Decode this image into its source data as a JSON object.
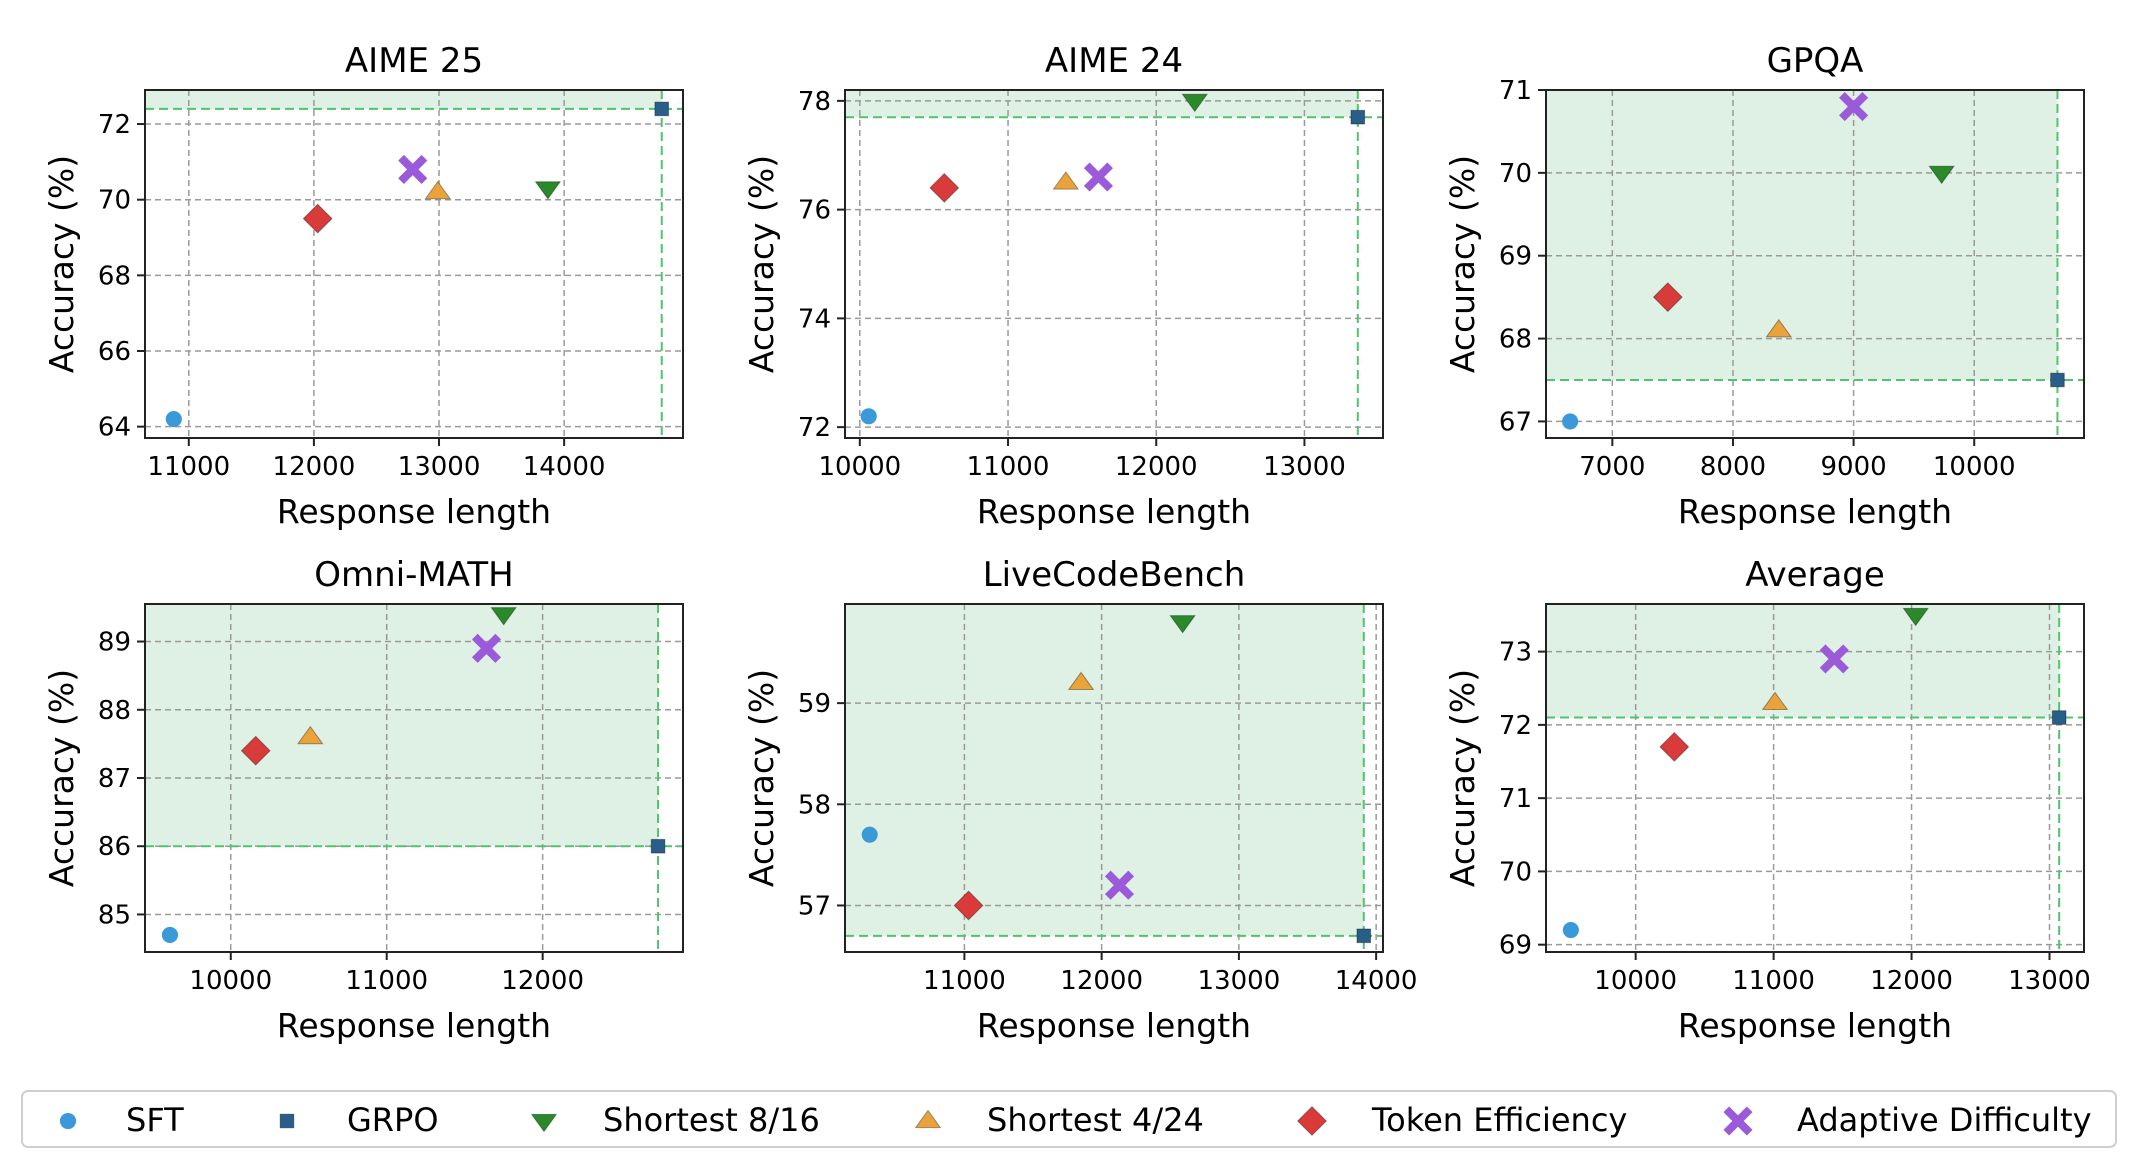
{
  "colors": {
    "SFT": "#3a9ad9",
    "GRPO": "#2a5e8a",
    "Shortest 8/16": "#2a8a2a",
    "Shortest 4/24": "#eaa33a",
    "Token Efficiency": "#d93a3a",
    "Adaptive Difficulty": "#9a5ad9",
    "region_fill": "#dff0e4",
    "region_line": "#4fc46a",
    "grid": "#9a9a9a"
  },
  "legend": [
    {
      "label": "SFT",
      "marker": "circle"
    },
    {
      "label": "GRPO",
      "marker": "square"
    },
    {
      "label": "Shortest 8/16",
      "marker": "triangle-down"
    },
    {
      "label": "Shortest 4/24",
      "marker": "triangle-up"
    },
    {
      "label": "Token Efficiency",
      "marker": "diamond"
    },
    {
      "label": "Adaptive Difficulty",
      "marker": "x"
    }
  ],
  "chart_data": [
    {
      "type": "scatter",
      "title": "AIME 25",
      "xlabel": "Response length",
      "ylabel": "Accuracy (%)",
      "xlim": [
        10650,
        14950
      ],
      "ylim": [
        63.7,
        72.9
      ],
      "xticks": [
        11000,
        12000,
        13000,
        14000
      ],
      "yticks": [
        64,
        66,
        68,
        70,
        72
      ],
      "grid": true,
      "reference": {
        "x": 14780,
        "y": 72.4
      },
      "points": [
        {
          "series": "SFT",
          "x": 10880,
          "y": 64.2
        },
        {
          "series": "GRPO",
          "x": 14780,
          "y": 72.4
        },
        {
          "series": "Shortest 8/16",
          "x": 13870,
          "y": 70.3
        },
        {
          "series": "Shortest 4/24",
          "x": 12990,
          "y": 70.2
        },
        {
          "series": "Token Efficiency",
          "x": 12030,
          "y": 69.5
        },
        {
          "series": "Adaptive Difficulty",
          "x": 12790,
          "y": 70.8
        }
      ]
    },
    {
      "type": "scatter",
      "title": "AIME 24",
      "xlabel": "Response length",
      "ylabel": "Accuracy (%)",
      "xlim": [
        9900,
        13530
      ],
      "ylim": [
        71.8,
        78.2
      ],
      "xticks": [
        10000,
        11000,
        12000,
        13000
      ],
      "yticks": [
        72,
        74,
        76,
        78
      ],
      "grid": true,
      "reference": {
        "x": 13360,
        "y": 77.7
      },
      "points": [
        {
          "series": "SFT",
          "x": 10060,
          "y": 72.2
        },
        {
          "series": "GRPO",
          "x": 13360,
          "y": 77.7
        },
        {
          "series": "Shortest 8/16",
          "x": 12260,
          "y": 78.0
        },
        {
          "series": "Shortest 4/24",
          "x": 11390,
          "y": 76.5
        },
        {
          "series": "Token Efficiency",
          "x": 10570,
          "y": 76.4
        },
        {
          "series": "Adaptive Difficulty",
          "x": 11610,
          "y": 76.6
        }
      ]
    },
    {
      "type": "scatter",
      "title": "GPQA",
      "xlabel": "Response length",
      "ylabel": "Accuracy (%)",
      "xlim": [
        6450,
        10910
      ],
      "ylim": [
        66.8,
        71.0
      ],
      "xticks": [
        7000,
        8000,
        9000,
        10000
      ],
      "yticks": [
        67,
        68,
        69,
        70,
        71
      ],
      "grid": true,
      "reference": {
        "x": 10690,
        "y": 67.5
      },
      "points": [
        {
          "series": "SFT",
          "x": 6650,
          "y": 67.0
        },
        {
          "series": "GRPO",
          "x": 10690,
          "y": 67.5
        },
        {
          "series": "Shortest 8/16",
          "x": 9730,
          "y": 70.0
        },
        {
          "series": "Shortest 4/24",
          "x": 8380,
          "y": 68.1
        },
        {
          "series": "Token Efficiency",
          "x": 7460,
          "y": 68.5
        },
        {
          "series": "Adaptive Difficulty",
          "x": 9000,
          "y": 70.8
        }
      ]
    },
    {
      "type": "scatter",
      "title": "Omni-MATH",
      "xlabel": "Response length",
      "ylabel": "Accuracy (%)",
      "xlim": [
        9450,
        12900
      ],
      "ylim": [
        84.45,
        89.55
      ],
      "xticks": [
        10000,
        11000,
        12000
      ],
      "yticks": [
        85,
        86,
        87,
        88,
        89
      ],
      "grid": true,
      "reference": {
        "x": 12740,
        "y": 86.0
      },
      "points": [
        {
          "series": "SFT",
          "x": 9610,
          "y": 84.7
        },
        {
          "series": "GRPO",
          "x": 12740,
          "y": 86.0
        },
        {
          "series": "Shortest 8/16",
          "x": 11750,
          "y": 89.4
        },
        {
          "series": "Shortest 4/24",
          "x": 10510,
          "y": 87.6
        },
        {
          "series": "Token Efficiency",
          "x": 10160,
          "y": 87.4
        },
        {
          "series": "Adaptive Difficulty",
          "x": 11640,
          "y": 88.9
        }
      ]
    },
    {
      "type": "scatter",
      "title": "LiveCodeBench",
      "xlabel": "Response length",
      "ylabel": "Accuracy (%)",
      "xlim": [
        10130,
        14050
      ],
      "ylim": [
        56.54,
        59.98
      ],
      "xticks": [
        11000,
        12000,
        13000,
        14000
      ],
      "yticks": [
        57,
        58,
        59
      ],
      "grid": true,
      "reference": {
        "x": 13910,
        "y": 56.7
      },
      "points": [
        {
          "series": "SFT",
          "x": 10310,
          "y": 57.7
        },
        {
          "series": "GRPO",
          "x": 13910,
          "y": 56.7
        },
        {
          "series": "Shortest 8/16",
          "x": 12590,
          "y": 59.8
        },
        {
          "series": "Shortest 4/24",
          "x": 11850,
          "y": 59.2
        },
        {
          "series": "Token Efficiency",
          "x": 11030,
          "y": 57.0
        },
        {
          "series": "Adaptive Difficulty",
          "x": 12130,
          "y": 57.2
        }
      ]
    },
    {
      "type": "scatter",
      "title": "Average",
      "xlabel": "Response length",
      "ylabel": "Accuracy (%)",
      "xlim": [
        9350,
        13250
      ],
      "ylim": [
        68.9,
        73.65
      ],
      "xticks": [
        10000,
        11000,
        12000,
        13000
      ],
      "yticks": [
        69,
        70,
        71,
        72,
        73
      ],
      "grid": true,
      "reference": {
        "x": 13070,
        "y": 72.1
      },
      "points": [
        {
          "series": "SFT",
          "x": 9530,
          "y": 69.2
        },
        {
          "series": "GRPO",
          "x": 13070,
          "y": 72.1
        },
        {
          "series": "Shortest 8/16",
          "x": 12030,
          "y": 73.5
        },
        {
          "series": "Shortest 4/24",
          "x": 11010,
          "y": 72.3
        },
        {
          "series": "Token Efficiency",
          "x": 10280,
          "y": 71.7
        },
        {
          "series": "Adaptive Difficulty",
          "x": 11440,
          "y": 72.9
        }
      ]
    }
  ]
}
